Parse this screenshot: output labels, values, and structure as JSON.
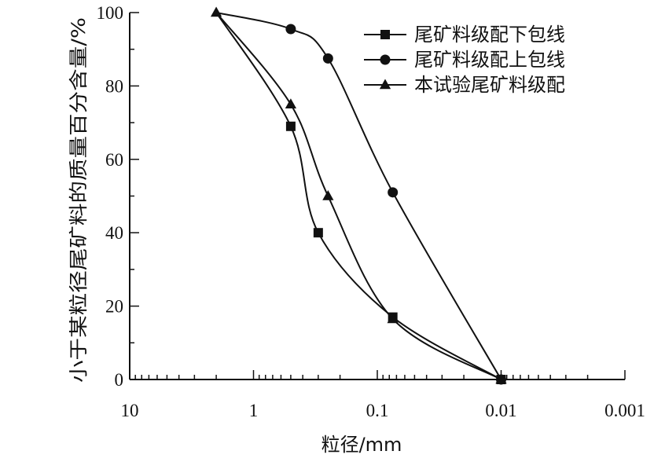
{
  "chart_data": {
    "type": "line",
    "title": "",
    "xlabel": "粒径/mm",
    "ylabel": "小于某粒径尾矿料的质量百分含量/%",
    "x_scale": "log",
    "x_reversed": true,
    "xlim": [
      10,
      0.001
    ],
    "ylim": [
      0,
      100
    ],
    "x_ticks": [
      10,
      1,
      0.1,
      0.01,
      0.001
    ],
    "x_tick_labels": [
      "10",
      "1",
      "0.1",
      "0.01",
      "0.001"
    ],
    "y_ticks": [
      0,
      20,
      40,
      60,
      80,
      100
    ],
    "y_tick_labels": [
      "0",
      "20",
      "40",
      "60",
      "80",
      "100"
    ],
    "grid": false,
    "legend_position": "top-right",
    "series": [
      {
        "name": "尾矿料级配下包线",
        "marker": "square",
        "x": [
          0.5,
          0.3,
          0.075,
          0.01
        ],
        "y": [
          69,
          40,
          17,
          0
        ]
      },
      {
        "name": "尾矿料级配上包线",
        "marker": "circle",
        "x": [
          0.5,
          0.25,
          0.075,
          0.01
        ],
        "y": [
          95.5,
          87.5,
          51,
          0
        ]
      },
      {
        "name": "本试验尾矿料级配",
        "marker": "triangle",
        "x": [
          2,
          0.5,
          0.25,
          0.075,
          0.01
        ],
        "y": [
          100,
          75,
          50,
          16.5,
          0
        ]
      }
    ]
  }
}
